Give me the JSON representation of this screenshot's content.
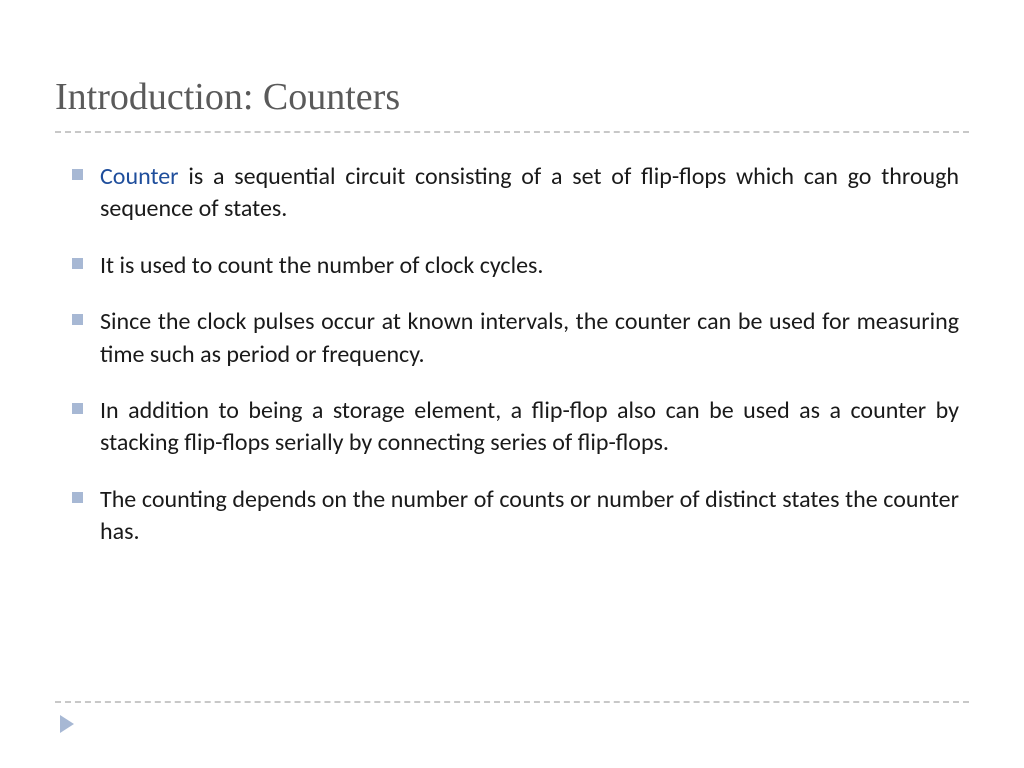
{
  "slide": {
    "title": "Introduction: Counters",
    "keyword": "Counter",
    "bullets": [
      {
        "prefix": "Counter",
        "text": " is a sequential circuit consisting of a set of flip-flops which can go through sequence of states.",
        "has_keyword": true
      },
      {
        "text": "It is used to count the number of clock cycles.",
        "has_keyword": false
      },
      {
        "text": "Since the clock pulses occur at known intervals, the counter can be used for measuring time such as period or frequency.",
        "has_keyword": false
      },
      {
        "text": "In addition to being a storage element, a flip-flop also can be used as a counter by stacking flip-flops serially by connecting series of flip-flops.",
        "has_keyword": false
      },
      {
        "text": "The counting depends on the number of counts or number of distinct states the counter has.",
        "has_keyword": false
      }
    ]
  },
  "colors": {
    "title_color": "#5a5a5a",
    "text_color": "#1a1a1a",
    "keyword_color": "#1f4e9c",
    "bullet_color": "#a7b8d4",
    "divider_color": "#c8c8c8",
    "background": "#ffffff"
  },
  "typography": {
    "title_fontsize": 38,
    "body_fontsize": 24,
    "title_family": "Georgia, serif",
    "body_family": "Gill Sans, sans-serif"
  }
}
